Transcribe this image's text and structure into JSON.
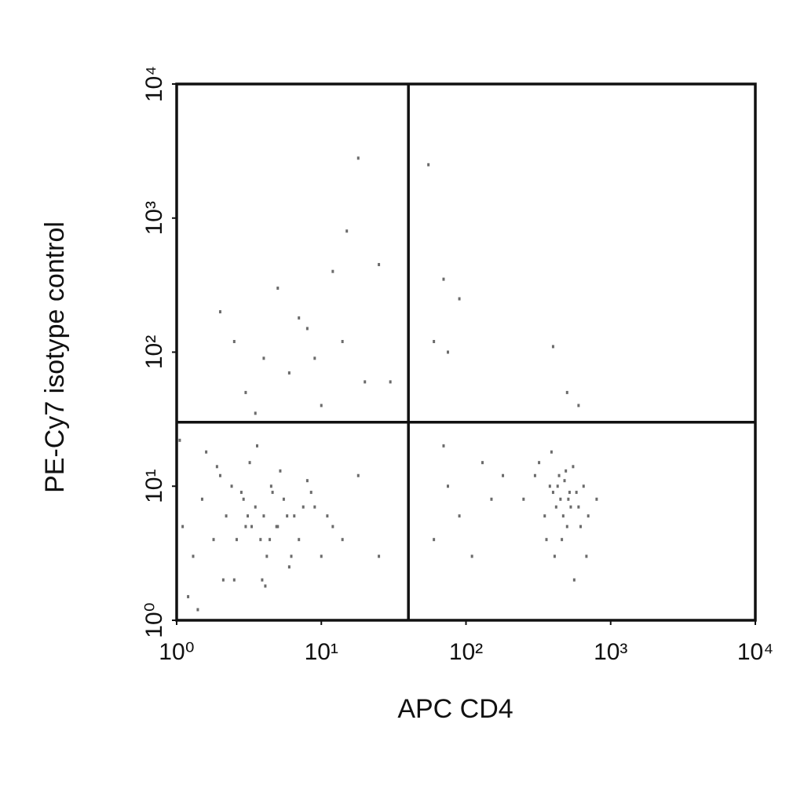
{
  "chart_data": {
    "type": "scatter",
    "x_label": "APC CD4",
    "y_label": "PE-Cy7 isotype control",
    "log_x": true,
    "log_y": true,
    "xlim": [
      1,
      10000
    ],
    "ylim": [
      1,
      10000
    ],
    "xticks": [
      {
        "value": 1,
        "label": "10⁰"
      },
      {
        "value": 10,
        "label": "10¹"
      },
      {
        "value": 100,
        "label": "10²"
      },
      {
        "value": 1000,
        "label": "10³"
      },
      {
        "value": 10000,
        "label": "10⁴"
      }
    ],
    "yticks": [
      {
        "value": 1,
        "label": "10⁰"
      },
      {
        "value": 10,
        "label": "10¹"
      },
      {
        "value": 100,
        "label": "10²"
      },
      {
        "value": 1000,
        "label": "10³"
      },
      {
        "value": 10000,
        "label": "10⁴"
      }
    ],
    "quadrant_gate": {
      "x": 40,
      "y": 30
    },
    "color": "#6b6b6b",
    "x": [
      1.1,
      1.3,
      1.5,
      1.8,
      2,
      2.2,
      2.5,
      2.8,
      3,
      3.2,
      3.5,
      3.8,
      4,
      4.2,
      4.5,
      5,
      5.5,
      6,
      6.5,
      7,
      8,
      9,
      10,
      12,
      1.2,
      1.6,
      2.1,
      2.6,
      3.1,
      3.6,
      4.1,
      4.6,
      5.2,
      6.2,
      7.5,
      1.4,
      2.4,
      3.3,
      4.4,
      5.8,
      1.9,
      2.9,
      3.9,
      4.9,
      8.5,
      11,
      14,
      18,
      25,
      1.05,
      250,
      300,
      350,
      380,
      400,
      420,
      450,
      480,
      500,
      520,
      550,
      600,
      650,
      700,
      320,
      360,
      410,
      440,
      470,
      510,
      560,
      620,
      390,
      430,
      460,
      490,
      530,
      580,
      680,
      800,
      60,
      75,
      90,
      110,
      130,
      150,
      70,
      180,
      2,
      2.5,
      3,
      4,
      5,
      6,
      8,
      10,
      12,
      15,
      18,
      20,
      25,
      3.5,
      7,
      9,
      14,
      30,
      55,
      70,
      90,
      60,
      75,
      400,
      500,
      600
    ],
    "values": [
      5,
      3,
      8,
      4,
      12,
      6,
      2,
      9,
      5,
      15,
      7,
      4,
      6,
      3,
      10,
      5,
      8,
      2.5,
      6,
      4,
      11,
      7,
      3,
      5,
      1.5,
      18,
      2,
      4,
      6,
      20,
      1.8,
      9,
      13,
      3,
      7,
      1.2,
      10,
      5,
      4,
      6,
      14,
      8,
      2,
      5,
      9,
      6,
      4,
      12,
      3,
      22,
      8,
      12,
      6,
      10,
      9,
      7,
      8,
      11,
      5,
      9,
      14,
      7,
      10,
      6,
      15,
      4,
      3,
      12,
      6,
      8,
      2,
      5,
      18,
      10,
      4,
      13,
      7,
      9,
      3,
      8,
      4,
      10,
      6,
      3,
      15,
      8,
      20,
      12,
      200,
      120,
      50,
      90,
      300,
      70,
      150,
      40,
      400,
      800,
      2800,
      60,
      450,
      35,
      180,
      90,
      120,
      60,
      2500,
      350,
      250,
      120,
      100,
      110,
      50,
      40
    ]
  }
}
